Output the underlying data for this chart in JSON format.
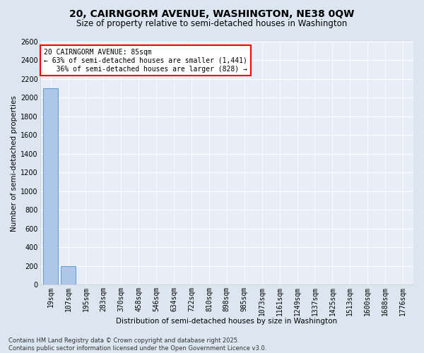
{
  "title_line1": "20, CAIRNGORM AVENUE, WASHINGTON, NE38 0QW",
  "title_line2": "Size of property relative to semi-detached houses in Washington",
  "xlabel": "Distribution of semi-detached houses by size in Washington",
  "ylabel": "Number of semi-detached properties",
  "categories": [
    "19sqm",
    "107sqm",
    "195sqm",
    "283sqm",
    "370sqm",
    "458sqm",
    "546sqm",
    "634sqm",
    "722sqm",
    "810sqm",
    "898sqm",
    "985sqm",
    "1073sqm",
    "1161sqm",
    "1249sqm",
    "1337sqm",
    "1425sqm",
    "1513sqm",
    "1600sqm",
    "1688sqm",
    "1776sqm"
  ],
  "values": [
    2100,
    200,
    5,
    2,
    1,
    1,
    1,
    0,
    0,
    0,
    0,
    0,
    0,
    0,
    0,
    0,
    0,
    0,
    0,
    0,
    0
  ],
  "bar_color": "#aec6e8",
  "bar_edge_color": "#5b9bd5",
  "annotation_text": "20 CAIRNGORM AVENUE: 85sqm\n← 63% of semi-detached houses are smaller (1,441)\n   36% of semi-detached houses are larger (828) →",
  "footer_text": "Contains HM Land Registry data © Crown copyright and database right 2025.\nContains public sector information licensed under the Open Government Licence v3.0.",
  "ylim": [
    0,
    2600
  ],
  "yticks": [
    0,
    200,
    400,
    600,
    800,
    1000,
    1200,
    1400,
    1600,
    1800,
    2000,
    2200,
    2400,
    2600
  ],
  "bg_color": "#dce6f0",
  "plot_bg_color": "#e8eef8",
  "title_fontsize": 10,
  "subtitle_fontsize": 8.5,
  "axis_label_fontsize": 7.5,
  "tick_fontsize": 7,
  "annotation_fontsize": 7,
  "footer_fontsize": 6
}
